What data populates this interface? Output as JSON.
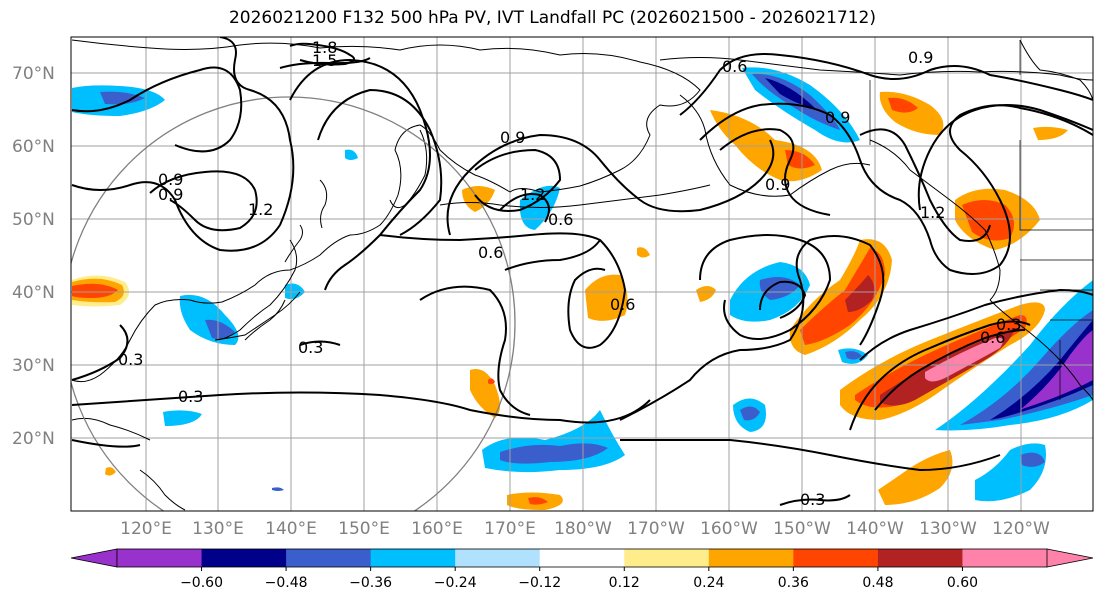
{
  "title": "2026021200 F132 500 hPa PV, IVT Landfall PC (2026021500 - 2026021712)",
  "lat_ticks": [
    "70°N",
    "60°N",
    "50°N",
    "40°N",
    "30°N",
    "20°N"
  ],
  "lon_ticks": [
    "120°E",
    "130°E",
    "140°E",
    "150°E",
    "160°E",
    "170°E",
    "180°W",
    "170°W",
    "160°W",
    "150°W",
    "140°W",
    "130°W",
    "120°W"
  ],
  "contour_labels": [
    "1.8",
    "1.5",
    "0.9",
    "0.6",
    "0.9",
    "0.9",
    "0.9",
    "0.9",
    "0.6",
    "1.2",
    "0.3",
    "0.6",
    "0.6",
    "1.2",
    "0.3",
    "1.2",
    "0.9",
    "0.6",
    "0.3",
    "0.3",
    "0.3"
  ],
  "colorbar": {
    "colors": [
      "#9932cc",
      "#00008b",
      "#3a5fcd",
      "#00bfff",
      "#b0e2ff",
      "#ffffff",
      "#ffec8b",
      "#ffa500",
      "#ff4500",
      "#b22222",
      "#ff82ab"
    ],
    "labels": [
      "−0.60",
      "−0.48",
      "−0.36",
      "−0.24",
      "−0.12",
      "0.12",
      "0.24",
      "0.36",
      "0.48",
      "0.60"
    ]
  }
}
